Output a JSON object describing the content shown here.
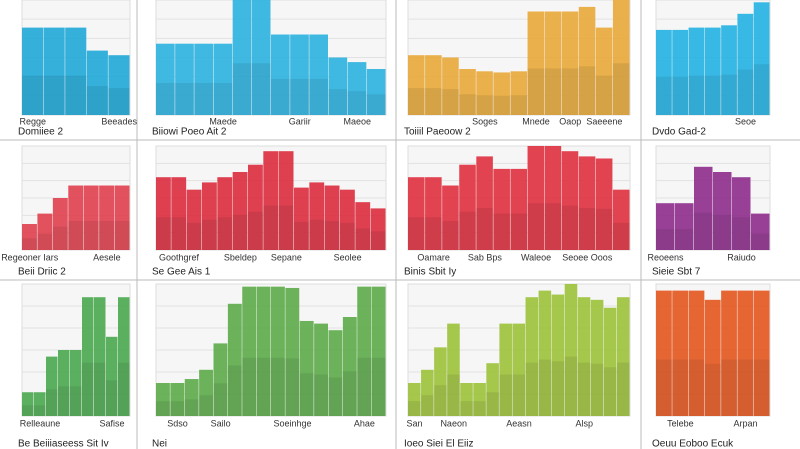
{
  "chart_data": [
    {
      "type": "bar",
      "title": "Domiiee 2",
      "color": "#1fa8d8",
      "ylim": [
        0,
        100
      ],
      "categories": [
        "Regge",
        null,
        null,
        null,
        "Beeades"
      ],
      "values": [
        76,
        76,
        76,
        56,
        52
      ]
    },
    {
      "type": "bar",
      "title": "Biiowi Poeo Ait 2",
      "color": "#2bb3e0",
      "ylim": [
        0,
        100
      ],
      "categories": [
        null,
        null,
        null,
        "Maede",
        null,
        null,
        null,
        "Gariir",
        null,
        null,
        "Maeoe",
        null
      ],
      "values": [
        62,
        62,
        62,
        62,
        100,
        100,
        70,
        70,
        70,
        50,
        46,
        40
      ]
    },
    {
      "type": "bar",
      "title": "Toiiil Paeoow 2",
      "color": "#e8a83a",
      "ylim": [
        0,
        100
      ],
      "categories": [
        null,
        null,
        null,
        null,
        "Soges",
        null,
        null,
        "Mnede",
        null,
        "Oaop",
        null,
        "Saeeene",
        null
      ],
      "values": [
        52,
        52,
        50,
        40,
        38,
        37,
        38,
        90,
        90,
        90,
        94,
        76,
        100
      ]
    },
    {
      "type": "bar",
      "title": "Dvdo Gad-2",
      "color": "#23b2e3",
      "ylim": [
        0,
        100
      ],
      "categories": [
        null,
        null,
        null,
        null,
        null,
        "Seoe",
        null
      ],
      "values": [
        74,
        74,
        76,
        76,
        78,
        88,
        98
      ]
    },
    {
      "type": "bar",
      "title": "Beii Driic 2",
      "color": "#e0404e",
      "ylim": [
        0,
        100
      ],
      "categories": [
        "Regeoner Iars",
        null,
        null,
        null,
        null,
        "Aesele",
        null
      ],
      "values": [
        25,
        35,
        50,
        62,
        62,
        62,
        62
      ]
    },
    {
      "type": "bar",
      "title": "Se Gee Ais 1",
      "color": "#dc2c3e",
      "ylim": [
        0,
        100
      ],
      "categories": [
        null,
        "Goothgref",
        null,
        null,
        null,
        "Sbeldep",
        null,
        null,
        "Sepane",
        null,
        null,
        null,
        "Seolee",
        null,
        null
      ],
      "values": [
        70,
        70,
        58,
        65,
        70,
        75,
        82,
        95,
        95,
        60,
        65,
        62,
        58,
        46,
        40
      ]
    },
    {
      "type": "bar",
      "title": "Binis Sbit Iy",
      "color": "#e0303f",
      "ylim": [
        0,
        100
      ],
      "categories": [
        null,
        "Oamare",
        null,
        null,
        "Sab Bps",
        null,
        null,
        "Waleoe",
        null,
        null,
        "Seoee Ooos",
        null,
        null
      ],
      "values": [
        70,
        70,
        62,
        82,
        90,
        78,
        78,
        100,
        100,
        95,
        90,
        88,
        58
      ]
    },
    {
      "type": "bar",
      "title": "Sieie Sbt 7",
      "color": "#8e2c8c",
      "ylim": [
        0,
        100
      ],
      "categories": [
        "Reoeens",
        null,
        null,
        null,
        "Raiudo",
        null
      ],
      "values": [
        45,
        45,
        80,
        75,
        70,
        35
      ]
    },
    {
      "type": "bar",
      "title": "Be Beiiiaseess Sit Iv",
      "color": "#4aa850",
      "ylim": [
        0,
        100
      ],
      "categories": [
        null,
        "Relleaune",
        null,
        null,
        null,
        null,
        null,
        "Safise",
        null
      ],
      "values": [
        18,
        18,
        45,
        50,
        50,
        90,
        90,
        60,
        90
      ]
    },
    {
      "type": "bar",
      "title": "Nei",
      "color": "#5cab4a",
      "ylim": [
        0,
        100
      ],
      "categories": [
        null,
        "Sdso",
        null,
        null,
        "Sailo",
        null,
        null,
        null,
        null,
        "Soeinhge",
        null,
        null,
        null,
        null,
        "Ahae",
        null
      ],
      "values": [
        25,
        25,
        28,
        35,
        55,
        85,
        98,
        98,
        98,
        97,
        72,
        70,
        65,
        75,
        98,
        98
      ]
    },
    {
      "type": "bar",
      "title": "Ioeo Siei El Eiiz",
      "color": "#9cc23a",
      "ylim": [
        0,
        100
      ],
      "categories": [
        "San",
        null,
        null,
        "Naeon",
        null,
        null,
        null,
        null,
        "Aeasn",
        null,
        null,
        null,
        null,
        "Alsp",
        null,
        null,
        null
      ],
      "values": [
        25,
        35,
        52,
        70,
        25,
        25,
        40,
        70,
        70,
        90,
        95,
        92,
        100,
        90,
        88,
        82,
        90
      ]
    },
    {
      "type": "bar",
      "title": "Oeuu Eoboo Ecuk",
      "color": "#e4561e",
      "ylim": [
        0,
        100
      ],
      "categories": [
        null,
        "Telebe",
        null,
        null,
        null,
        "Arpan",
        null
      ],
      "values": [
        95,
        95,
        95,
        88,
        95,
        95,
        95
      ]
    }
  ]
}
